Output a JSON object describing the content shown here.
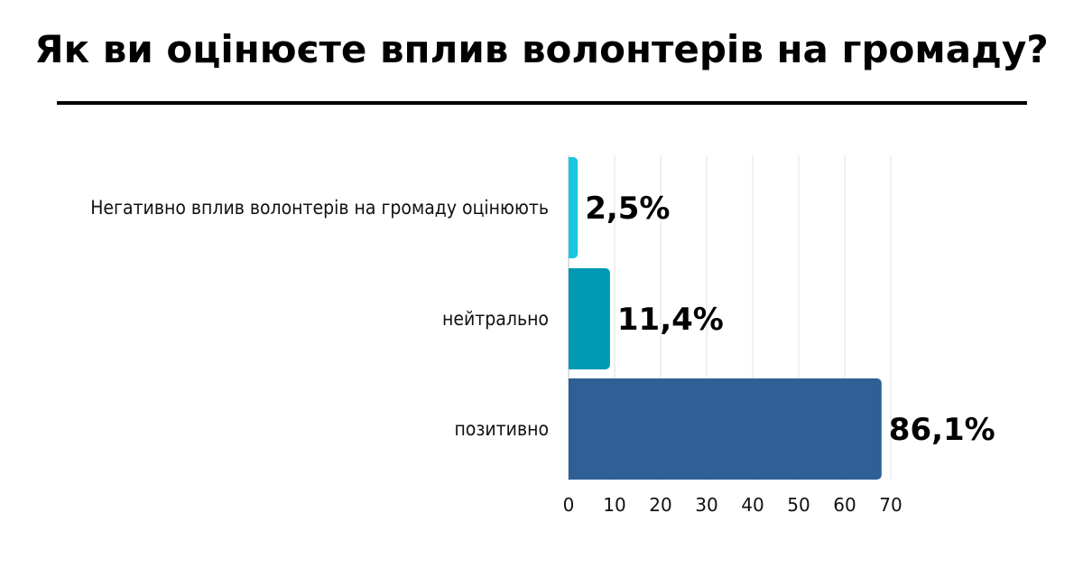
{
  "title": "Як ви оцінюєте вплив волонтерів на громаду?",
  "chart_data": {
    "type": "bar",
    "orientation": "horizontal",
    "categories": [
      "Негативно вплив волонтерів на громаду оцінюють",
      "нейтрально",
      "позитивно"
    ],
    "values": [
      2.5,
      11.4,
      86.1
    ],
    "bar_lengths": [
      2,
      9,
      68
    ],
    "value_labels": [
      "2,5%",
      "11,4%",
      "86,1%"
    ],
    "colors": [
      "#17c6e0",
      "#0198b3",
      "#2e6096"
    ],
    "xticks": [
      0,
      10,
      20,
      30,
      40,
      50,
      60,
      70
    ],
    "xlim": [
      0,
      70
    ],
    "grid": true,
    "legend": "none"
  }
}
